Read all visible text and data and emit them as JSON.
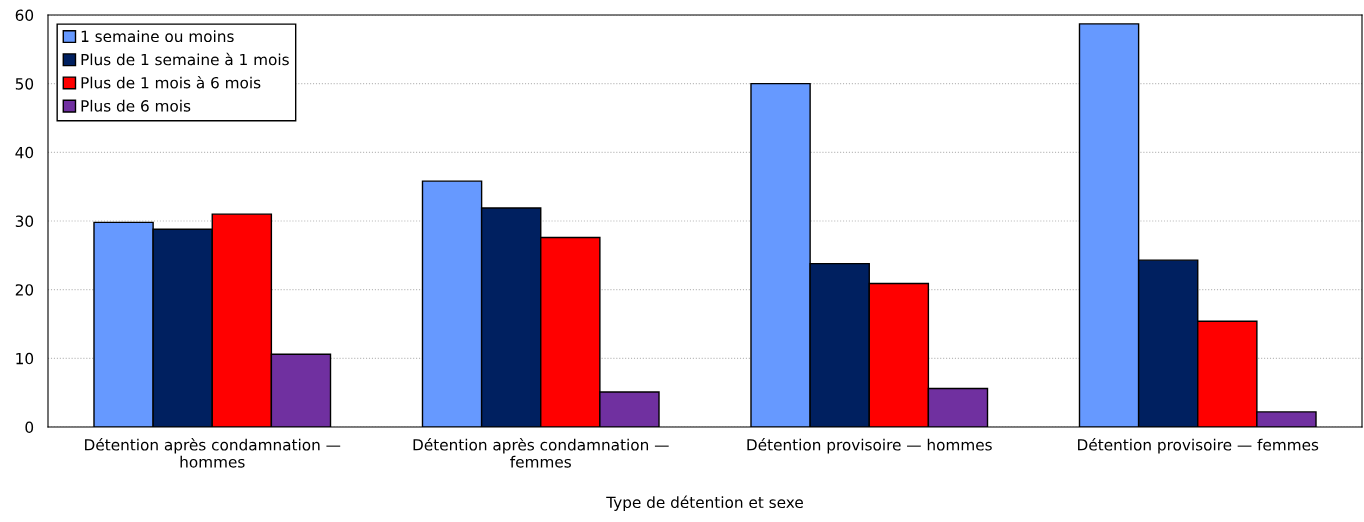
{
  "chart_data": {
    "type": "bar",
    "xlabel": "Type de détention et sexe",
    "categories": [
      "Détention après condamnation —\nhommes",
      "Détention après condamnation —\nfemmes",
      "Détention provisoire — hommes",
      "Détention provisoire — femmes"
    ],
    "series": [
      {
        "name": "1 semaine ou moins",
        "color": "#6699ff",
        "values": [
          29.8,
          35.8,
          50.0,
          58.7
        ]
      },
      {
        "name": "Plus de 1 semaine à 1 mois",
        "color": "#002060",
        "values": [
          28.8,
          31.9,
          23.8,
          24.3
        ]
      },
      {
        "name": "Plus de 1 mois à 6 mois",
        "color": "#ff0000",
        "values": [
          31.0,
          27.6,
          20.9,
          15.4
        ]
      },
      {
        "name": "Plus de 6 mois",
        "color": "#7030a0",
        "values": [
          10.6,
          5.1,
          5.6,
          2.2
        ]
      }
    ],
    "ylim": [
      0,
      60
    ],
    "yticks": [
      0,
      10,
      20,
      30,
      40,
      50,
      60
    ],
    "grid": "y",
    "legend": "top left"
  }
}
